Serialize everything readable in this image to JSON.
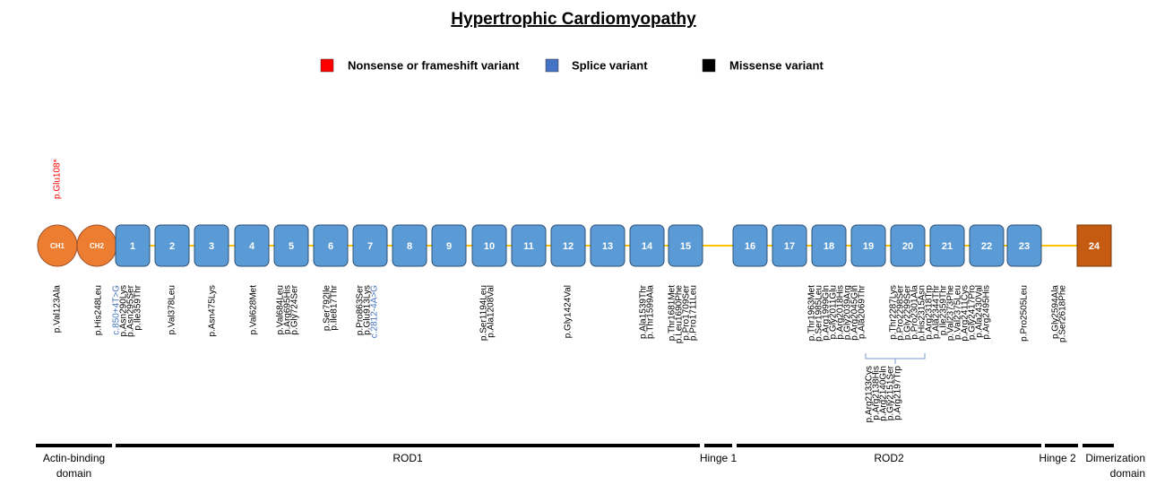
{
  "title": "Hypertrophic Cardiomyopathy",
  "legend": [
    {
      "label": "Nonsense or frameshift variant",
      "color": "#ff0000"
    },
    {
      "label": "Splice variant",
      "color": "#4472c4"
    },
    {
      "label": "Missense variant",
      "color": "#000000"
    }
  ],
  "nodes": [
    {
      "label": "CH1",
      "shape": "ellipse"
    },
    {
      "label": "CH2",
      "shape": "ellipse"
    },
    {
      "label": "1"
    },
    {
      "label": "2"
    },
    {
      "label": "3"
    },
    {
      "label": "4"
    },
    {
      "label": "5"
    },
    {
      "label": "6"
    },
    {
      "label": "7"
    },
    {
      "label": "8"
    },
    {
      "label": "9"
    },
    {
      "label": "10"
    },
    {
      "label": "11"
    },
    {
      "label": "12"
    },
    {
      "label": "13"
    },
    {
      "label": "14"
    },
    {
      "label": "15"
    },
    {
      "label": "16"
    },
    {
      "label": "17"
    },
    {
      "label": "18"
    },
    {
      "label": "19"
    },
    {
      "label": "20"
    },
    {
      "label": "21"
    },
    {
      "label": "22"
    },
    {
      "label": "23"
    },
    {
      "label": "24",
      "shape": "end"
    }
  ],
  "nonsense_variant": {
    "text": "p.Glu108*",
    "color": "#ff0000"
  },
  "variant_groups": [
    {
      "lines": [
        {
          "text": "p.Val123Ala"
        }
      ]
    },
    {
      "lines": [
        {
          "text": "p.His248Leu"
        }
      ]
    },
    {
      "lines": [
        {
          "text": "c.850+4T>G",
          "color": "#4472c4"
        },
        {
          "text": "p.Asn290Lys"
        },
        {
          "text": "p.Asn295Ser"
        },
        {
          "text": "p.Ile359Thr"
        }
      ]
    },
    {
      "lines": [
        {
          "text": "p.Val378Leu"
        }
      ]
    },
    {
      "lines": [
        {
          "text": "p.Asn475Lys"
        }
      ]
    },
    {
      "lines": [
        {
          "text": "p.Val628Met"
        }
      ]
    },
    {
      "lines": [
        {
          "text": "p.Val684Leu"
        },
        {
          "text": "p.Arg695His"
        },
        {
          "text": "p.Gly724Ser"
        }
      ]
    },
    {
      "lines": [
        {
          "text": "p.Ser792Ile"
        },
        {
          "text": "p.Ile817Thr"
        }
      ]
    },
    {
      "lines": [
        {
          "text": "p.Pro863Ser"
        },
        {
          "text": "p.Glu913Lys"
        },
        {
          "text": "c.2812-4A>G",
          "color": "#4472c4"
        }
      ]
    },
    {
      "lines": [
        {
          "text": "p.Ser1194Leu"
        },
        {
          "text": "p.Ala1208Val"
        }
      ]
    },
    {
      "lines": [
        {
          "text": "p.Gly1424Val"
        }
      ]
    },
    {
      "lines": [
        {
          "text": "p.Ala1539Thr"
        },
        {
          "text": "p.Thr1599Ala"
        }
      ]
    },
    {
      "lines": [
        {
          "text": "p.Thr1681Met"
        },
        {
          "text": "p.Leu1690Phe"
        },
        {
          "text": "p.Pro1709Ser"
        },
        {
          "text": "p.Pro1711Leu"
        }
      ]
    },
    {
      "lines": [
        {
          "text": "p.Thr1963Met"
        },
        {
          "text": "p.Ser1985Leu"
        },
        {
          "text": "p.Arg1999Gln"
        },
        {
          "text": "p.Gly2011Glu"
        },
        {
          "text": "p.Arg2018His"
        },
        {
          "text": "p.Gly2039Arg"
        },
        {
          "text": "p.Arg2045Gln"
        },
        {
          "text": "p.Ala2069Thr"
        }
      ]
    },
    {
      "lines": [
        {
          "text": "p.Thr2287Lys"
        },
        {
          "text": "p.Pro2298Ser"
        },
        {
          "text": "p.Gly2299Ser"
        },
        {
          "text": "p.Pro2301Ala"
        },
        {
          "text": "p.His2315Asn"
        },
        {
          "text": "p.Arg2318Trp"
        },
        {
          "text": "p.Ala2344Thr"
        },
        {
          "text": "p.Ile2359Thr"
        },
        {
          "text": "p.Val2373Phe"
        },
        {
          "text": "p.Val2375Leu"
        },
        {
          "text": "p.Arg2411Cys"
        },
        {
          "text": "p.Gly2417Pro"
        },
        {
          "text": "p.Ala2430Val"
        },
        {
          "text": "p.Arg2495His"
        }
      ]
    },
    {
      "lines": [
        {
          "text": "p.Arg2133Cys"
        },
        {
          "text": "p.Arg2138His"
        },
        {
          "text": "p.Arg2140Gln"
        },
        {
          "text": "p.Gly2151Ser"
        },
        {
          "text": "p.Arg2197Trp"
        }
      ]
    },
    {
      "lines": [
        {
          "text": "p.Pro2505Leu"
        }
      ]
    },
    {
      "lines": [
        {
          "text": "p.Gly2594Ala"
        },
        {
          "text": "p.Ser2618Phe"
        }
      ]
    }
  ],
  "domains": [
    {
      "lines": [
        "Actin-binding",
        "domain"
      ]
    },
    {
      "lines": [
        "ROD1"
      ]
    },
    {
      "lines": [
        "Hinge 1"
      ]
    },
    {
      "lines": [
        "ROD2"
      ]
    },
    {
      "lines": [
        "Hinge 2"
      ]
    },
    {
      "lines": [
        "Dimerization",
        "domain"
      ]
    }
  ]
}
